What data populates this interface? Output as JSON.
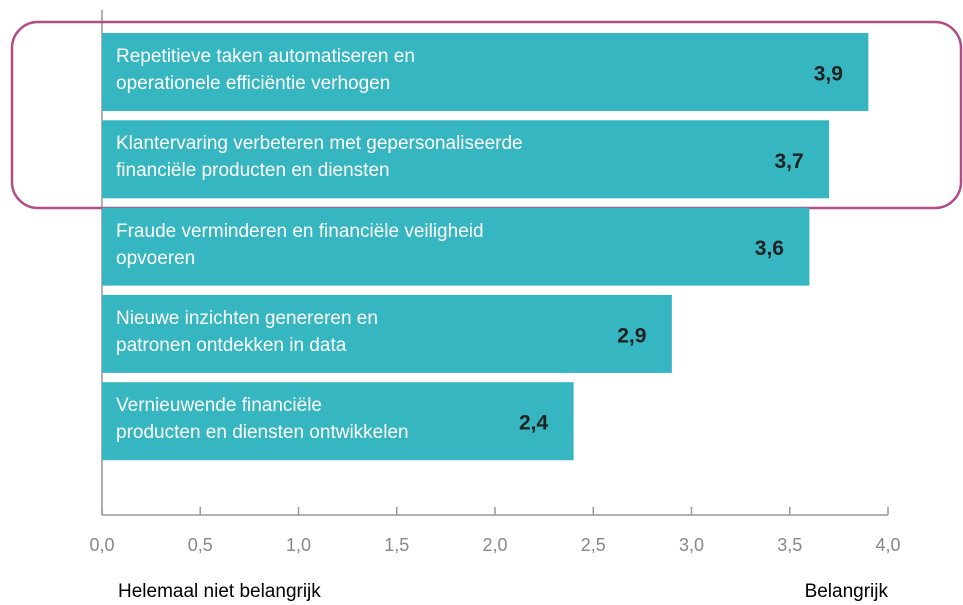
{
  "chart_data": {
    "type": "barh",
    "categories": [
      "Repetitieve taken automatiseren en\noperationele efficiëntie verhogen",
      "Klantervaring verbeteren met gepersonaliseerde\nfinanciële producten en diensten",
      "Fraude verminderen en financiële veiligheid\nopvoeren",
      "Nieuwe inzichten genereren en\npatronen ontdekken in data",
      "Vernieuwende financiële\nproducten en diensten ontwikkelen"
    ],
    "values": [
      3.9,
      3.7,
      3.6,
      2.9,
      2.4
    ],
    "value_labels": [
      "3,9",
      "3,7",
      "3,6",
      "2,9",
      "2,4"
    ],
    "color": "#35b6c0",
    "xlim": [
      0,
      4.0
    ],
    "xticks": [
      {
        "value": 0,
        "label": "0,0"
      },
      {
        "value": 0.5,
        "label": "0,5"
      },
      {
        "value": 1.0,
        "label": "1,0"
      },
      {
        "value": 1.5,
        "label": "1,5"
      },
      {
        "value": 2.0,
        "label": "2,0"
      },
      {
        "value": 2.5,
        "label": "2,5"
      },
      {
        "value": 3.0,
        "label": "3,0"
      },
      {
        "value": 3.5,
        "label": "3,5"
      },
      {
        "value": 4.0,
        "label": "4,0"
      }
    ],
    "xlabel_left": "Helemaal niet belangrijk",
    "xlabel_right": "Belangrijk"
  }
}
